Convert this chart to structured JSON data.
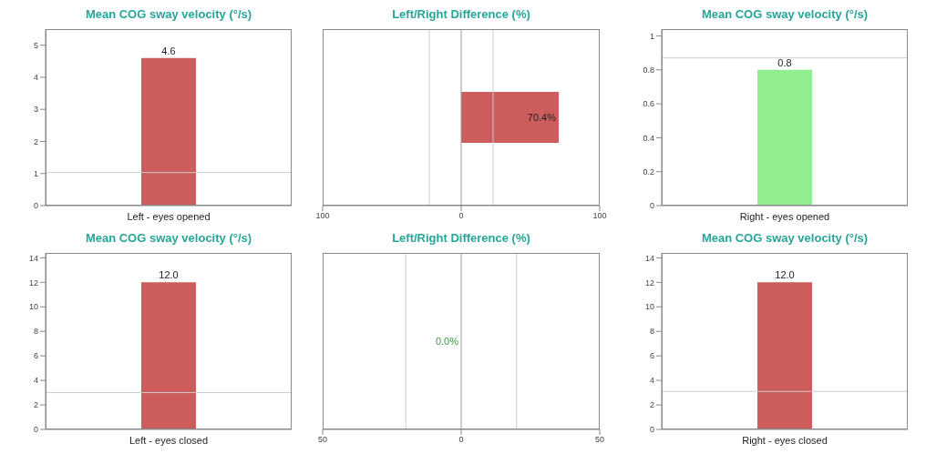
{
  "chart_data": [
    {
      "type": "bar",
      "title": "Mean COG sway velocity (°/s)",
      "categories": [
        "Left - eyes opened"
      ],
      "values": [
        4.6
      ],
      "color": "#cd5c5c",
      "data_labels": true,
      "ylim": [
        0,
        5.5
      ],
      "yticks": [
        0,
        1,
        2,
        3,
        4,
        5
      ],
      "ref_lines": [
        {
          "axis": "y",
          "value": 1.03,
          "color": "#cccccc"
        }
      ]
    },
    {
      "type": "bar",
      "orientation": "horizontal",
      "title": "Left/Right Difference (%)",
      "categories": [
        null
      ],
      "values": [
        70.4
      ],
      "value_labels": [
        "70.4%"
      ],
      "color": "#cd5c5c",
      "xlim": [
        -100,
        100
      ],
      "xticks": [
        {
          "value": -100,
          "label": "100"
        },
        0,
        100
      ],
      "tick_labels": "x",
      "ref_lines": [
        {
          "axis": "x",
          "value": -23,
          "color": "#cccccc"
        },
        {
          "axis": "x",
          "value": 23,
          "color": "#cccccc"
        },
        {
          "axis": "x",
          "value": 0,
          "color": "#999999"
        }
      ]
    },
    {
      "type": "bar",
      "title": "Mean COG sway velocity (°/s)",
      "categories": [
        "Right - eyes opened"
      ],
      "values": [
        0.8
      ],
      "color": "#90ee90",
      "data_labels": true,
      "ylim": [
        0,
        1.04
      ],
      "yticks": [
        0,
        0.2,
        0.4,
        0.6,
        0.8,
        1
      ],
      "ref_lines": [
        {
          "axis": "y",
          "value": 0.87,
          "color": "#cccccc"
        }
      ]
    },
    {
      "type": "bar",
      "title": "Mean COG sway velocity (°/s)",
      "categories": [
        "Left - eyes closed"
      ],
      "values": [
        12.0
      ],
      "value_labels": [
        "12.0"
      ],
      "color": "#cd5c5c",
      "ylim": [
        0,
        14.4
      ],
      "yticks": [
        0,
        2,
        4,
        6,
        8,
        10,
        12,
        14
      ],
      "ref_lines": [
        {
          "axis": "y",
          "value": 3.0,
          "color": "#cccccc"
        }
      ]
    },
    {
      "type": "bar",
      "orientation": "horizontal",
      "title": "Left/Right Difference (%)",
      "categories": [
        null
      ],
      "values": [
        0.0
      ],
      "value_labels": [
        "0.0%"
      ],
      "color": "#3a9a3a",
      "xlim": [
        -50,
        50
      ],
      "xticks": [
        {
          "value": -50,
          "label": "50"
        },
        0,
        50
      ],
      "tick_labels": "x",
      "ref_lines": [
        {
          "axis": "x",
          "value": -20,
          "color": "#cccccc"
        },
        {
          "axis": "x",
          "value": 20,
          "color": "#cccccc"
        },
        {
          "axis": "x",
          "value": 0,
          "color": "#999999"
        }
      ]
    },
    {
      "type": "bar",
      "title": "Mean COG sway velocity (°/s)",
      "categories": [
        "Right - eyes closed"
      ],
      "values": [
        12.0
      ],
      "value_labels": [
        "12.0"
      ],
      "color": "#cd5c5c",
      "ylim": [
        0,
        14.4
      ],
      "yticks": [
        0,
        2,
        4,
        6,
        8,
        10,
        12,
        14
      ],
      "ref_lines": [
        {
          "axis": "y",
          "value": 3.1,
          "color": "#cccccc"
        }
      ]
    }
  ]
}
